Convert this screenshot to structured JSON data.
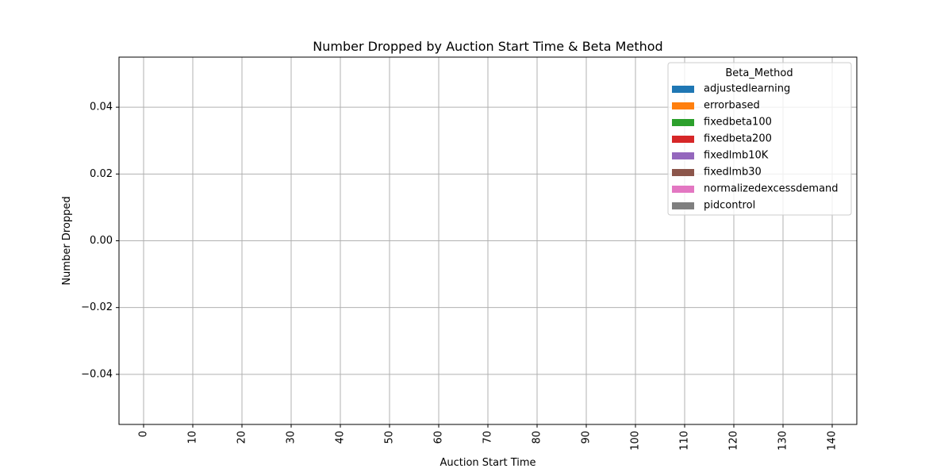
{
  "chart_data": {
    "type": "bar",
    "title": "Number Dropped by Auction Start Time & Beta Method",
    "xlabel": "Auction Start Time",
    "ylabel": "Number Dropped",
    "categories": [
      "0",
      "10",
      "20",
      "30",
      "40",
      "50",
      "60",
      "70",
      "80",
      "90",
      "100",
      "110",
      "120",
      "130",
      "140"
    ],
    "yticks": [
      "−0.04",
      "−0.02",
      "0.00",
      "0.02",
      "0.04"
    ],
    "ylim": [
      -0.055,
      0.055
    ],
    "grid": true,
    "legend": {
      "title": "Beta_Method",
      "placement": "upper right"
    },
    "series": [
      {
        "name": "adjustedlearning",
        "color": "#1f77b4",
        "values": [
          0,
          0,
          0,
          0,
          0,
          0,
          0,
          0,
          0,
          0,
          0,
          0,
          0,
          0,
          0
        ]
      },
      {
        "name": "errorbased",
        "color": "#ff7f0e",
        "values": [
          0,
          0,
          0,
          0,
          0,
          0,
          0,
          0,
          0,
          0,
          0,
          0,
          0,
          0,
          0
        ]
      },
      {
        "name": "fixedbeta100",
        "color": "#2ca02c",
        "values": [
          0,
          0,
          0,
          0,
          0,
          0,
          0,
          0,
          0,
          0,
          0,
          0,
          0,
          0,
          0
        ]
      },
      {
        "name": "fixedbeta200",
        "color": "#d62728",
        "values": [
          0,
          0,
          0,
          0,
          0,
          0,
          0,
          0,
          0,
          0,
          0,
          0,
          0,
          0,
          0
        ]
      },
      {
        "name": "fixedlmb10K",
        "color": "#9467bd",
        "values": [
          0,
          0,
          0,
          0,
          0,
          0,
          0,
          0,
          0,
          0,
          0,
          0,
          0,
          0,
          0
        ]
      },
      {
        "name": "fixedlmb30",
        "color": "#8c564b",
        "values": [
          0,
          0,
          0,
          0,
          0,
          0,
          0,
          0,
          0,
          0,
          0,
          0,
          0,
          0,
          0
        ]
      },
      {
        "name": "normalizedexcessdemand",
        "color": "#e377c2",
        "values": [
          0,
          0,
          0,
          0,
          0,
          0,
          0,
          0,
          0,
          0,
          0,
          0,
          0,
          0,
          0
        ]
      },
      {
        "name": "pidcontrol",
        "color": "#7f7f7f",
        "values": [
          0,
          0,
          0,
          0,
          0,
          0,
          0,
          0,
          0,
          0,
          0,
          0,
          0,
          0,
          0
        ]
      }
    ]
  }
}
